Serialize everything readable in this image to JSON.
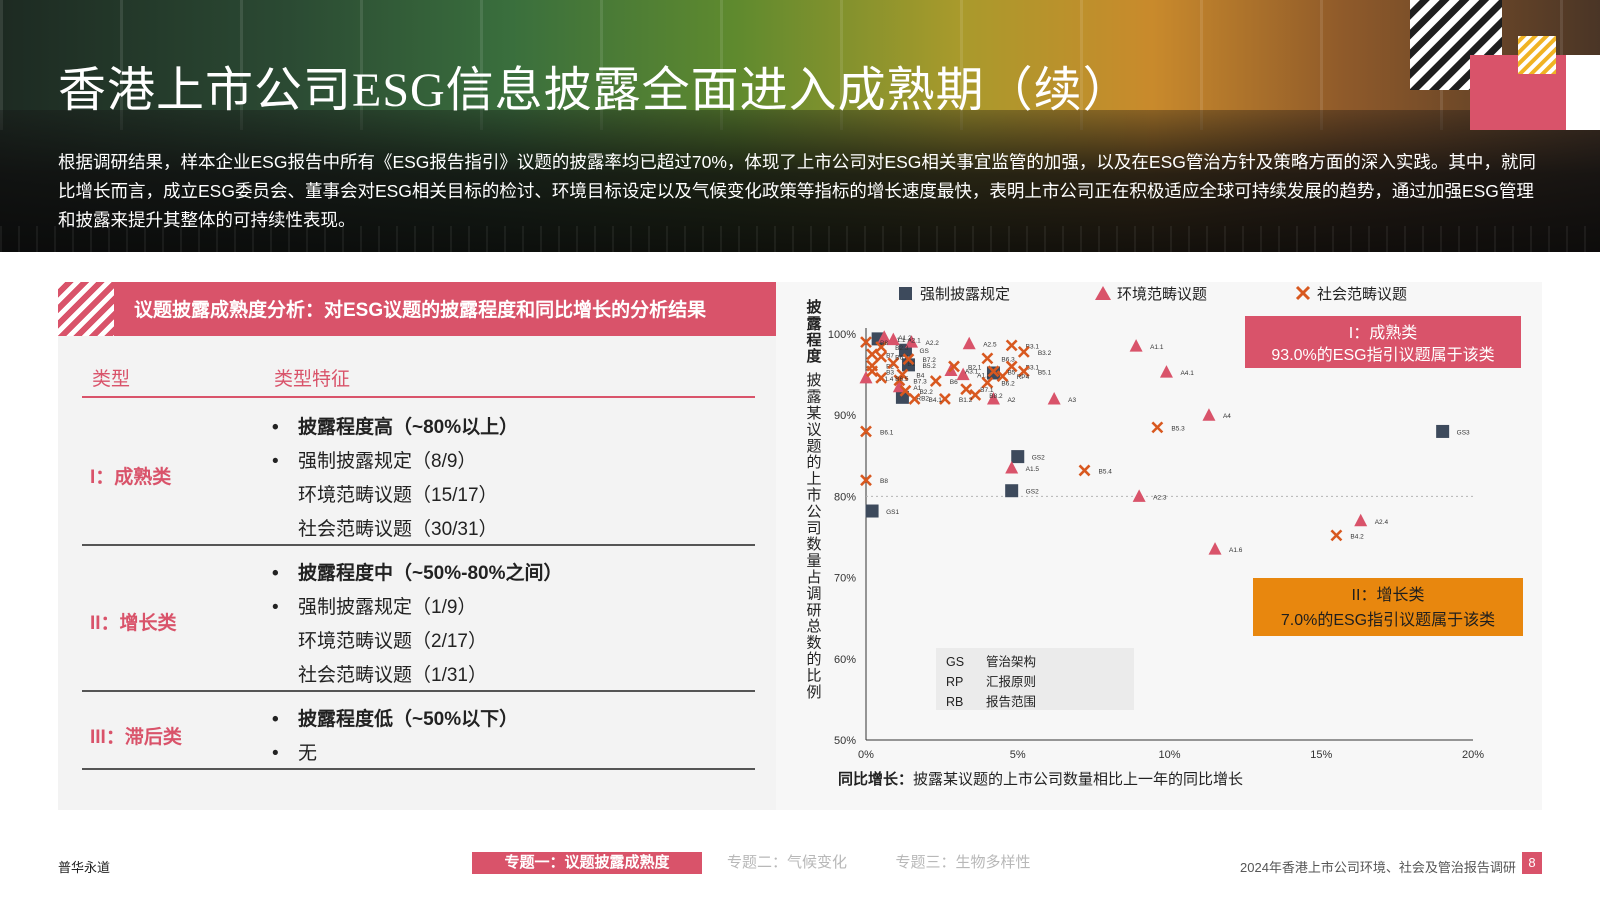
{
  "page": {
    "title": "香港上市公司ESG信息披露全面进入成熟期（续）",
    "intro": "根据调研结果，样本企业ESG报告中所有《ESG报告指引》议题的披露率均已超过70%，体现了上市公司对ESG相关事宜监管的加强，以及在ESG管治方针及策略方面的深入实践。其中，就同比增长而言，成立ESG委员会、董事会对ESG相关目标的检讨、环境目标设定以及气候变化政策等指标的增长速度最快，表明上市公司正在积极适应全球可持续发展的趋势，通过加强ESG管理和披露来提升其整体的可持续性表现。"
  },
  "panel": {
    "title": "议题披露成熟度分析：对ESG议题的披露程度和同比增长的分析结果",
    "col_type": "类型",
    "col_feature": "类型特征",
    "rows": [
      {
        "label": "I：成熟类",
        "features": [
          "披露程度高（~80%以上）",
          "强制披露规定（8/9）",
          "环境范畴议题（15/17）",
          "社会范畴议题（30/31）"
        ]
      },
      {
        "label": "II：增长类",
        "features": [
          "披露程度中（~50%-80%之间）",
          "强制披露规定（1/9）",
          "环境范畴议题（2/17）",
          "社会范畴议题（1/31）"
        ]
      },
      {
        "label": "III：滞后类",
        "features": [
          "披露程度低（~50%以下）",
          "无"
        ]
      }
    ]
  },
  "chart_data": {
    "type": "scatter",
    "title": "",
    "xlabel": "同比增长：披露某议题的上市公司数量相比上一年的同比增长",
    "ylabel": "披露程度：披露某议题的上市公司数量占调研总数的比例",
    "xlim": [
      0,
      20
    ],
    "ylim": [
      50,
      100
    ],
    "x_ticks": [
      "0%",
      "5%",
      "10%",
      "15%",
      "20%"
    ],
    "y_ticks": [
      "50%",
      "60%",
      "70%",
      "80%",
      "90%",
      "100%"
    ],
    "reference_line_y": 80,
    "legend": [
      "强制披露规定",
      "环境范畴议题",
      "社会范畴议题"
    ],
    "legend_position": "top",
    "colors": {
      "mandatory": "#3d4a5c",
      "environmental": "#d9536a",
      "social": "#d8581f",
      "mature_box": "#d9536a",
      "growth_box": "#e8870e"
    },
    "series": [
      {
        "name": "强制披露规定",
        "marker": "square",
        "points": [
          {
            "label": "GS1",
            "x": 0.2,
            "y": 78.2
          },
          {
            "label": "GS2",
            "x": 4.8,
            "y": 80.7
          },
          {
            "label": "GS2",
            "x": 5.0,
            "y": 84.9
          },
          {
            "label": "GS3",
            "x": 19.0,
            "y": 88.0
          },
          {
            "label": "RB2",
            "x": 1.2,
            "y": 92.2
          },
          {
            "label": "GS",
            "x": 1.3,
            "y": 98.0
          },
          {
            "label": "B5.2",
            "x": 1.4,
            "y": 96.2
          },
          {
            "label": "B1.1",
            "x": 0.4,
            "y": 99.4
          },
          {
            "label": "",
            "x": 4.2,
            "y": 95.2
          }
        ]
      },
      {
        "name": "环境范畴议题",
        "marker": "triangle",
        "points": [
          {
            "label": "A1.1",
            "x": 8.9,
            "y": 98.5
          },
          {
            "label": "A4.1",
            "x": 9.9,
            "y": 95.3
          },
          {
            "label": "A4",
            "x": 11.3,
            "y": 90.0
          },
          {
            "label": "A3",
            "x": 6.2,
            "y": 92.0
          },
          {
            "label": "A2",
            "x": 4.2,
            "y": 92.0
          },
          {
            "label": "A2.5",
            "x": 3.4,
            "y": 98.8
          },
          {
            "label": "A2.2",
            "x": 1.5,
            "y": 99.0
          },
          {
            "label": "A1.5",
            "x": 4.8,
            "y": 83.5
          },
          {
            "label": "A2.3",
            "x": 9.0,
            "y": 80.0
          },
          {
            "label": "A2.4",
            "x": 16.3,
            "y": 77.0
          },
          {
            "label": "A1.6",
            "x": 11.5,
            "y": 73.5
          },
          {
            "label": "A1.4",
            "x": 0.0,
            "y": 94.6
          },
          {
            "label": "A1.2",
            "x": 0.6,
            "y": 99.6
          },
          {
            "label": "A1.3",
            "x": 3.2,
            "y": 95.0
          },
          {
            "label": "A2.1",
            "x": 0.9,
            "y": 99.3
          },
          {
            "label": "A3.1",
            "x": 2.8,
            "y": 95.5
          },
          {
            "label": "A1",
            "x": 1.1,
            "y": 93.5
          }
        ]
      },
      {
        "name": "社会范畴议题",
        "marker": "x",
        "points": [
          {
            "label": "B6.1",
            "x": 0.0,
            "y": 88.0
          },
          {
            "label": "B8",
            "x": 0.0,
            "y": 82.0
          },
          {
            "label": "B5.3",
            "x": 9.6,
            "y": 88.5
          },
          {
            "label": "B5.4",
            "x": 7.2,
            "y": 83.2
          },
          {
            "label": "B4.2",
            "x": 15.5,
            "y": 75.2
          },
          {
            "label": "B3.1",
            "x": 4.8,
            "y": 98.6
          },
          {
            "label": "B3.2",
            "x": 5.2,
            "y": 97.8
          },
          {
            "label": "B6.3",
            "x": 4.0,
            "y": 97.0
          },
          {
            "label": "B3.1",
            "x": 4.8,
            "y": 96.0
          },
          {
            "label": "B5.1",
            "x": 5.2,
            "y": 95.4
          },
          {
            "label": "B5",
            "x": 4.2,
            "y": 95.4
          },
          {
            "label": "RP4",
            "x": 4.5,
            "y": 94.8
          },
          {
            "label": "B6.2",
            "x": 4.0,
            "y": 94.0
          },
          {
            "label": "B2.1",
            "x": 2.9,
            "y": 96.0
          },
          {
            "label": "B7.1",
            "x": 3.3,
            "y": 93.2
          },
          {
            "label": "B8.2",
            "x": 3.6,
            "y": 92.5
          },
          {
            "label": "B1.2",
            "x": 2.6,
            "y": 92.0
          },
          {
            "label": "B6",
            "x": 2.3,
            "y": 94.2
          },
          {
            "label": "B4.1",
            "x": 1.6,
            "y": 92.0
          },
          {
            "label": "B2.2",
            "x": 1.3,
            "y": 93.0
          },
          {
            "label": "B7.3",
            "x": 1.1,
            "y": 94.3
          },
          {
            "label": "B4",
            "x": 1.2,
            "y": 95.0
          },
          {
            "label": "B6.5",
            "x": 0.5,
            "y": 94.6
          },
          {
            "label": "B3",
            "x": 0.2,
            "y": 95.4
          },
          {
            "label": "B2",
            "x": 0.2,
            "y": 96.1
          },
          {
            "label": "B1",
            "x": 0.9,
            "y": 96.4
          },
          {
            "label": "B6.4",
            "x": 0.5,
            "y": 97.2
          },
          {
            "label": "B7",
            "x": 0.2,
            "y": 97.5
          },
          {
            "label": "B2.3",
            "x": 0.5,
            "y": 98.4
          },
          {
            "label": "B8",
            "x": 0.0,
            "y": 99.0
          },
          {
            "label": "B7.2",
            "x": 1.4,
            "y": 96.9
          }
        ]
      }
    ],
    "categories_boxes": [
      {
        "title": "I：成熟类",
        "text": "93.0%的ESG指引议题属于该类"
      },
      {
        "title": "II：增长类",
        "text": "7.0%的ESG指引议题属于该类"
      }
    ],
    "abbreviations": [
      {
        "code": "GS",
        "meaning": "管治架构"
      },
      {
        "code": "RP",
        "meaning": "汇报原则"
      },
      {
        "code": "RB",
        "meaning": "报告范围"
      }
    ]
  },
  "footer": {
    "brand": "普华永道",
    "tabs": [
      "专题一：议题披露成熟度",
      "专题二：气候变化",
      "专题三：生物多样性"
    ],
    "report": "2024年香港上市公司环境、社会及管治报告调研",
    "page_number": "8"
  }
}
